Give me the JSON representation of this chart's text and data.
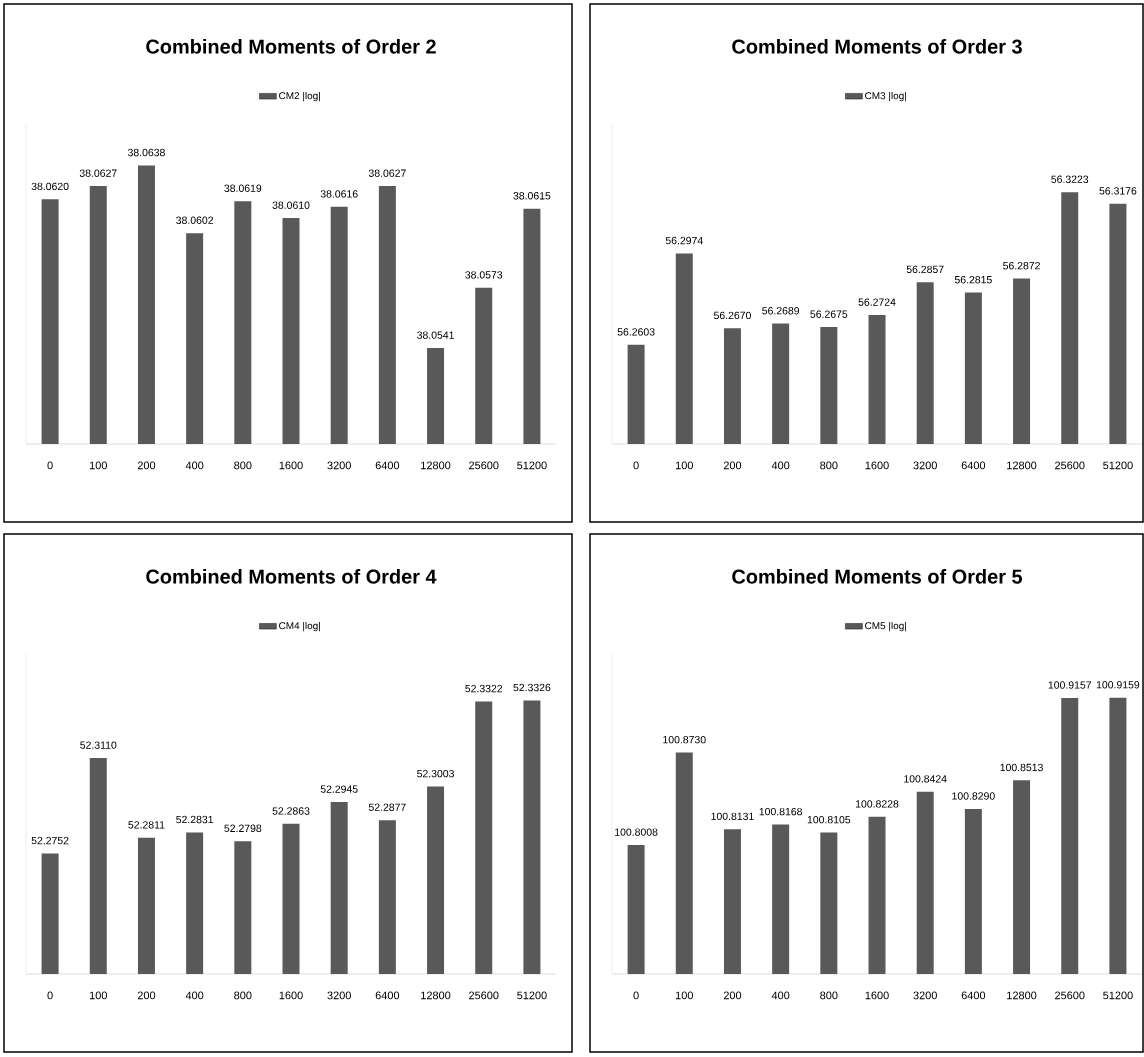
{
  "chart_data": [
    {
      "type": "bar",
      "title": "Combined Moments of Order 2",
      "categories": [
        "0",
        "100",
        "200",
        "400",
        "800",
        "1600",
        "3200",
        "6400",
        "12800",
        "25600",
        "51200"
      ],
      "series": [
        {
          "name": "CM2 |log|",
          "color": "#595959",
          "values": [
            38.062,
            38.0627,
            38.0638,
            38.0602,
            38.0619,
            38.061,
            38.0616,
            38.0627,
            38.0541,
            38.0573,
            38.0615
          ],
          "value_labels": [
            "38.0620",
            "38.0627",
            "38.0638",
            "38.0602",
            "38.0619",
            "38.0610",
            "38.0616",
            "38.0627",
            "38.0541",
            "38.0573",
            "38.0615"
          ]
        }
      ],
      "ylim": [
        38.049,
        38.066
      ],
      "tick_labels": "x",
      "legend": "top"
    },
    {
      "type": "bar",
      "title": "Combined Moments of Order 3",
      "categories": [
        "0",
        "100",
        "200",
        "400",
        "800",
        "1600",
        "3200",
        "6400",
        "12800",
        "25600",
        "51200"
      ],
      "series": [
        {
          "name": "CM3 |log|",
          "color": "#595959",
          "values": [
            56.2603,
            56.2974,
            56.267,
            56.2689,
            56.2675,
            56.2724,
            56.2857,
            56.2815,
            56.2872,
            56.3223,
            56.3176
          ],
          "value_labels": [
            "56.2603",
            "56.2974",
            "56.2670",
            "56.2689",
            "56.2675",
            "56.2724",
            "56.2857",
            "56.2815",
            "56.2872",
            "56.3223",
            "56.3176"
          ]
        }
      ],
      "ylim": [
        56.22,
        56.35
      ],
      "tick_labels": "x",
      "legend": "top"
    },
    {
      "type": "bar",
      "title": "Combined Moments of Order 4",
      "categories": [
        "0",
        "100",
        "200",
        "400",
        "800",
        "1600",
        "3200",
        "6400",
        "12800",
        "25600",
        "51200"
      ],
      "series": [
        {
          "name": "CM4 |log|",
          "color": "#595959",
          "values": [
            52.2752,
            52.311,
            52.2811,
            52.2831,
            52.2798,
            52.2863,
            52.2945,
            52.2877,
            52.3003,
            52.3322,
            52.3326
          ],
          "value_labels": [
            "52.2752",
            "52.3110",
            "52.2811",
            "52.2831",
            "52.2798",
            "52.2863",
            "52.2945",
            "52.2877",
            "52.3003",
            "52.3322",
            "52.3326"
          ]
        }
      ],
      "ylim": [
        52.23,
        52.35
      ],
      "tick_labels": "x",
      "legend": "top"
    },
    {
      "type": "bar",
      "title": "Combined Moments of Order 5",
      "categories": [
        "0",
        "100",
        "200",
        "400",
        "800",
        "1600",
        "3200",
        "6400",
        "12800",
        "25600",
        "51200"
      ],
      "series": [
        {
          "name": "CM5 |log|",
          "color": "#595959",
          "values": [
            100.8008,
            100.873,
            100.8131,
            100.8168,
            100.8105,
            100.8228,
            100.8424,
            100.829,
            100.8513,
            100.9157,
            100.9159
          ],
          "value_labels": [
            "100.8008",
            "100.8730",
            "100.8131",
            "100.8168",
            "100.8105",
            "100.8228",
            "100.8424",
            "100.8290",
            "100.8513",
            "100.9157",
            "100.9159"
          ]
        }
      ],
      "ylim": [
        100.7,
        100.95
      ],
      "tick_labels": "x",
      "legend": "top"
    }
  ]
}
